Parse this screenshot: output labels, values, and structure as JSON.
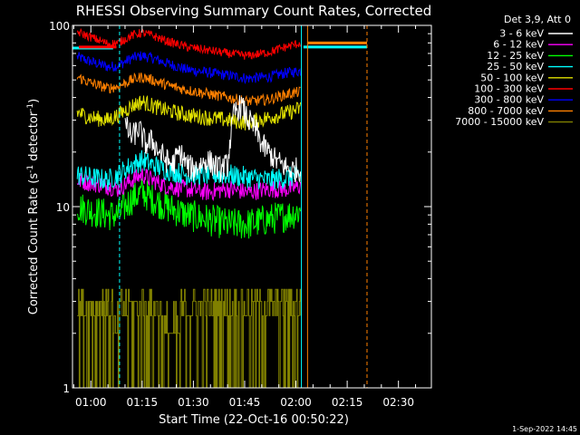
{
  "chart_data": {
    "type": "line",
    "title": "RHESSI Observing Summary Count Rates, Corrected",
    "xlabel": "Start Time (22-Oct-16 00:50:22)",
    "ylabel": "Corrected Count Rate (s⁻¹ detector⁻¹)",
    "ylabel_parts": {
      "prefix": "Corrected Count Rate (s",
      "exp1": "-1",
      "mid": " detector",
      "exp2": "-1",
      "suffix": ")"
    },
    "yscale": "log",
    "ylim": [
      1,
      100
    ],
    "xlim_minutes": [
      -5.37,
      99.63
    ],
    "x_ticks": [
      {
        "minute": 0,
        "label": "01:00"
      },
      {
        "minute": 15,
        "label": "01:15"
      },
      {
        "minute": 30,
        "label": "01:30"
      },
      {
        "minute": 45,
        "label": "01:45"
      },
      {
        "minute": 60,
        "label": "02:00"
      },
      {
        "minute": 75,
        "label": "02:15"
      },
      {
        "minute": 90,
        "label": "02:30"
      }
    ],
    "y_tick_labels": [
      {
        "value": 1,
        "label": "1"
      },
      {
        "value": 10,
        "label": "10"
      },
      {
        "value": 100,
        "label": "100"
      }
    ],
    "legend_header": "Det 3,9, Att 0",
    "legend_position": "top-right",
    "series": [
      {
        "name": "3 - 6 keV",
        "color": "#ffffff",
        "points": [
          [
            -4,
            null
          ],
          [
            8,
            null
          ],
          [
            10,
            28
          ],
          [
            12,
            24
          ],
          [
            14,
            27
          ],
          [
            16,
            22
          ],
          [
            18,
            23
          ],
          [
            20,
            20
          ],
          [
            22,
            18
          ],
          [
            24,
            17
          ],
          [
            26,
            20
          ],
          [
            28,
            17
          ],
          [
            30,
            16
          ],
          [
            32,
            17
          ],
          [
            34,
            18
          ],
          [
            36,
            17
          ],
          [
            38,
            16
          ],
          [
            40,
            17
          ],
          [
            41,
            25
          ],
          [
            42,
            33
          ],
          [
            44,
            36
          ],
          [
            46,
            30
          ],
          [
            48,
            27
          ],
          [
            50,
            22
          ],
          [
            52,
            20
          ],
          [
            54,
            18
          ],
          [
            56,
            17
          ],
          [
            58,
            16
          ],
          [
            60,
            16
          ],
          [
            61.5,
            16
          ]
        ]
      },
      {
        "name": "6 - 12 keV",
        "color": "#ff00ff",
        "points": [
          [
            -4,
            14
          ],
          [
            0,
            13.5
          ],
          [
            5,
            13
          ],
          [
            8,
            12.5
          ],
          [
            12,
            14
          ],
          [
            15,
            15
          ],
          [
            18,
            14
          ],
          [
            22,
            13
          ],
          [
            28,
            12.5
          ],
          [
            34,
            12
          ],
          [
            40,
            12.5
          ],
          [
            46,
            12
          ],
          [
            52,
            12.5
          ],
          [
            58,
            12.5
          ],
          [
            61.5,
            13
          ]
        ]
      },
      {
        "name": "12 - 25 keV",
        "color": "#00ff00",
        "points": [
          [
            -4,
            10
          ],
          [
            0,
            9.5
          ],
          [
            5,
            9
          ],
          [
            8,
            9
          ],
          [
            12,
            11
          ],
          [
            15,
            12
          ],
          [
            18,
            11
          ],
          [
            22,
            10
          ],
          [
            28,
            9
          ],
          [
            34,
            8.5
          ],
          [
            40,
            8
          ],
          [
            46,
            8
          ],
          [
            52,
            8.5
          ],
          [
            58,
            9
          ],
          [
            61.5,
            9.5
          ]
        ]
      },
      {
        "name": "25 - 50 keV",
        "color": "#00ffff",
        "points": [
          [
            -4,
            15
          ],
          [
            0,
            14.5
          ],
          [
            5,
            14
          ],
          [
            8,
            15
          ],
          [
            12,
            17
          ],
          [
            15,
            18
          ],
          [
            18,
            17
          ],
          [
            22,
            16
          ],
          [
            28,
            15
          ],
          [
            34,
            15
          ],
          [
            40,
            15
          ],
          [
            46,
            14.5
          ],
          [
            52,
            14
          ],
          [
            58,
            14.5
          ],
          [
            61.5,
            15
          ]
        ]
      },
      {
        "name": "50 - 100 keV",
        "color": "#e0e000",
        "points": [
          [
            -4,
            33
          ],
          [
            0,
            31
          ],
          [
            5,
            30
          ],
          [
            8,
            32
          ],
          [
            12,
            36
          ],
          [
            15,
            38
          ],
          [
            18,
            36
          ],
          [
            22,
            34
          ],
          [
            28,
            32
          ],
          [
            34,
            31
          ],
          [
            40,
            30
          ],
          [
            46,
            29
          ],
          [
            52,
            31
          ],
          [
            58,
            33
          ],
          [
            61.5,
            35
          ]
        ]
      },
      {
        "name": "100 - 300 keV",
        "color": "#ff0000",
        "points": [
          [
            -4,
            92
          ],
          [
            0,
            86
          ],
          [
            5,
            79
          ],
          [
            8,
            80
          ],
          [
            12,
            88
          ],
          [
            15,
            91
          ],
          [
            18,
            88
          ],
          [
            22,
            82
          ],
          [
            28,
            76
          ],
          [
            34,
            73
          ],
          [
            40,
            70
          ],
          [
            46,
            68
          ],
          [
            52,
            71
          ],
          [
            58,
            77
          ],
          [
            61.5,
            80
          ]
        ]
      },
      {
        "name": "300 - 800 keV",
        "color": "#0000ff",
        "points": [
          [
            -4,
            67
          ],
          [
            0,
            63
          ],
          [
            5,
            59
          ],
          [
            8,
            60
          ],
          [
            12,
            66
          ],
          [
            15,
            68
          ],
          [
            18,
            66
          ],
          [
            22,
            62
          ],
          [
            28,
            57
          ],
          [
            34,
            55
          ],
          [
            40,
            53
          ],
          [
            46,
            51
          ],
          [
            52,
            52
          ],
          [
            58,
            55
          ],
          [
            61.5,
            56
          ]
        ]
      },
      {
        "name": "800 - 7000 keV",
        "color": "#ff8000",
        "points": [
          [
            -4,
            52
          ],
          [
            0,
            48
          ],
          [
            5,
            45
          ],
          [
            8,
            46
          ],
          [
            12,
            50
          ],
          [
            15,
            52
          ],
          [
            18,
            50
          ],
          [
            22,
            47
          ],
          [
            28,
            44
          ],
          [
            34,
            42
          ],
          [
            40,
            40
          ],
          [
            46,
            38
          ],
          [
            52,
            39
          ],
          [
            58,
            42
          ],
          [
            61.5,
            43
          ]
        ]
      },
      {
        "name": "7000 - 15000 keV",
        "color": "#808000",
        "points": [
          [
            -4,
            2.5
          ],
          [
            0,
            2.5
          ],
          [
            5,
            2.5
          ],
          [
            8,
            2.3
          ],
          [
            12,
            3
          ],
          [
            15,
            3
          ],
          [
            18,
            2.8
          ],
          [
            22,
            2.2
          ],
          [
            28,
            2.5
          ],
          [
            34,
            2.6
          ],
          [
            40,
            2.5
          ],
          [
            46,
            2.6
          ],
          [
            52,
            2.8
          ],
          [
            58,
            2.7
          ],
          [
            61.5,
            2.6
          ]
        ]
      }
    ],
    "annotations": {
      "attenuator_flat_segments": [
        {
          "color": "#00ffff",
          "x0": -5.37,
          "x1": 6.5,
          "value": 75
        },
        {
          "color": "#ff0000",
          "x0": -3.5,
          "x1": 7.5,
          "value": 76
        },
        {
          "color": "#00ffff",
          "x0": 62.2,
          "x1": 80.8,
          "value": 76
        },
        {
          "color": "#ff8000",
          "x0": 63.5,
          "x1": 80.8,
          "value": 80
        }
      ],
      "vertical_lines": [
        {
          "minute": -5.37,
          "color": "#00ff00",
          "style": "solid"
        },
        {
          "minute": 8.4,
          "color": "#00ffff",
          "style": "dashed"
        },
        {
          "minute": 61.6,
          "color": "#00ffff",
          "style": "solid"
        },
        {
          "minute": 63.4,
          "color": "#ff8000",
          "style": "solid"
        },
        {
          "minute": 80.8,
          "color": "#ff8000",
          "style": "dashed"
        }
      ]
    }
  },
  "footer": {
    "timestamp": "1-Sep-2022 14:45"
  }
}
